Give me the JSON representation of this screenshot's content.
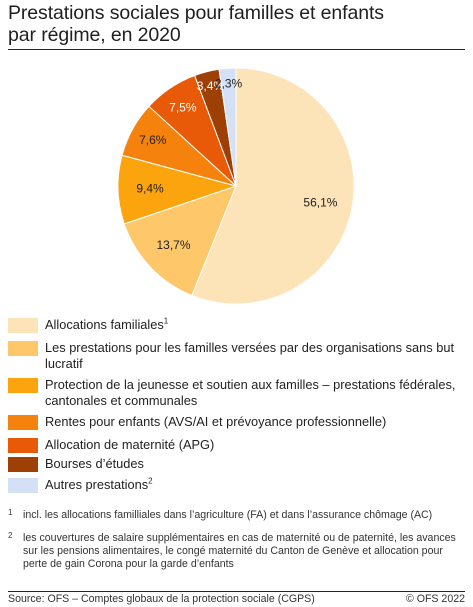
{
  "title_line1": "Prestations sociales pour familles et enfants",
  "title_line2": "par régime, en 2020",
  "chart_data": {
    "type": "pie",
    "title": "Prestations sociales pour familles et enfants par régime, en 2020",
    "slices": [
      {
        "label": "Allocations familiales",
        "value": 56.1,
        "value_label": "56,1%",
        "color": "#fde3b8",
        "label_color": "#222222"
      },
      {
        "label": "Les prestations pour les familles versées par des organisations sans but lucratif",
        "value": 13.7,
        "value_label": "13,7%",
        "color": "#fdc76a",
        "label_color": "#222222"
      },
      {
        "label": "Protection de la jeunesse et soutien aux familles – prestations fédérales, cantonales et communales",
        "value": 9.4,
        "value_label": "9,4%",
        "color": "#fca40d",
        "label_color": "#222222"
      },
      {
        "label": "Rentes pour enfants (AVS/AI et prévoyance professionnelle)",
        "value": 7.6,
        "value_label": "7,6%",
        "color": "#f5820d",
        "label_color": "#222222"
      },
      {
        "label": "Allocation de maternité (APG)",
        "value": 7.5,
        "value_label": "7,5%",
        "color": "#e85a07",
        "label_color": "#ffffff"
      },
      {
        "label": "Bourses d’études",
        "value": 3.4,
        "value_label": "3,4%",
        "color": "#9e3f06",
        "label_color": "#ffffff"
      },
      {
        "label": "Autres prestations",
        "value": 2.3,
        "value_label": "2,3%",
        "color": "#d4e0f6",
        "label_color": "#222222"
      }
    ]
  },
  "legend": [
    {
      "text": "Allocations familiales",
      "sup": "1",
      "color": "#fde3b8"
    },
    {
      "text": "Les prestations pour les familles versées par des organisations sans but lucratif",
      "sup": "",
      "color": "#fdc76a"
    },
    {
      "text": "Protection de la jeunesse et soutien aux familles – prestations fédérales, cantonales et communales",
      "sup": "",
      "color": "#fca40d"
    },
    {
      "text": "Rentes pour enfants (AVS/AI et prévoyance professionnelle)",
      "sup": "",
      "color": "#f5820d"
    },
    {
      "text": "Allocation de maternité (APG)",
      "sup": "",
      "color": "#e85a07"
    },
    {
      "text": "Bourses d’études",
      "sup": "",
      "color": "#9e3f06"
    },
    {
      "text": "Autres prestations",
      "sup": "2",
      "color": "#d4e0f6"
    }
  ],
  "footnotes": [
    {
      "mark": "1",
      "text": "incl. les allocations familliales dans l’agriculture (FA) et dans l’assurance chômage (AC)"
    },
    {
      "mark": "2",
      "text": "les couvertures de salaire supplémentaires en cas de maternité ou de paternité, les avances sur les pensions alimentaires, le congé maternité du Canton de Genève et allocation pour perte de gain Corona pour la garde d’enfants"
    }
  ],
  "source": "Source: OFS – Comptes globaux de la protection sociale (CGPS)",
  "copyright": "© OFS 2022"
}
